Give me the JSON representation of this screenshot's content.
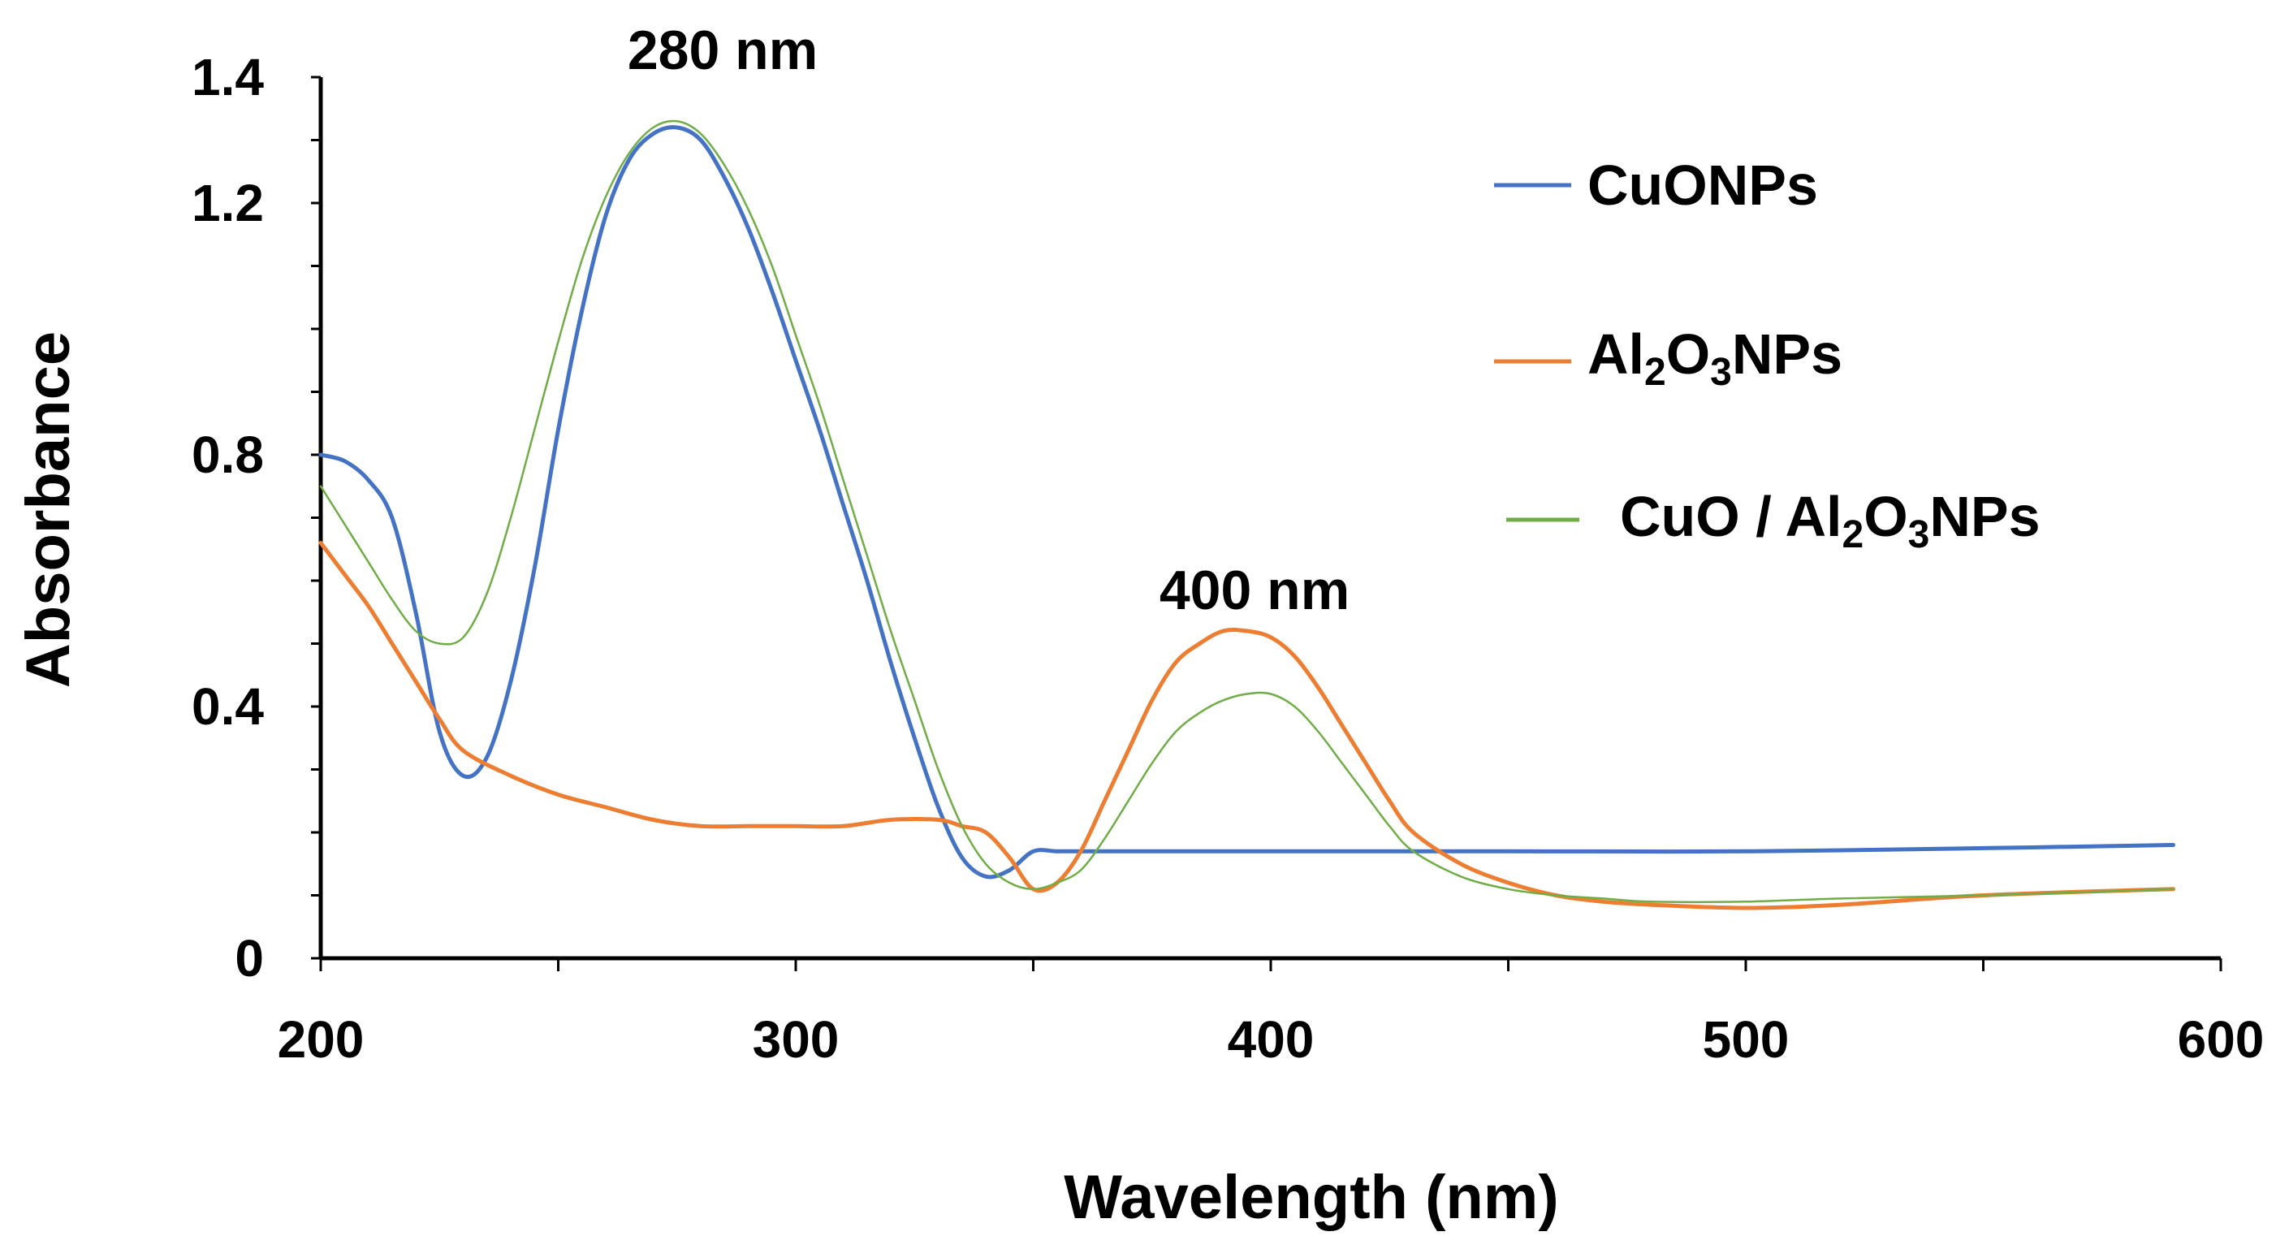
{
  "chart_data": {
    "type": "line",
    "title": "",
    "xlabel": "Wavelength (nm)",
    "ylabel": "Absorbance",
    "xlim": [
      200,
      600
    ],
    "ylim": [
      0,
      1.4
    ],
    "x_ticks": [
      200,
      300,
      400,
      500,
      600
    ],
    "y_ticks": [
      0,
      0.4,
      0.8,
      1.2,
      1.4
    ],
    "y_tick_labels": [
      "0",
      "0.4",
      "0.8",
      "1.2",
      "1.4"
    ],
    "grid": false,
    "legend_position": "top-right",
    "annotations": [
      {
        "text": "280 nm",
        "x": 275,
        "y": 1.31
      },
      {
        "text": "400 nm",
        "x": 398,
        "y": 0.51
      }
    ],
    "series": [
      {
        "name": "CuONPs",
        "legend_main": "CuONPs",
        "color": "#4472C4",
        "x": [
          200,
          205,
          210,
          215,
          220,
          225,
          230,
          235,
          240,
          245,
          250,
          255,
          260,
          265,
          270,
          275,
          280,
          285,
          290,
          295,
          300,
          305,
          310,
          315,
          320,
          325,
          330,
          335,
          340,
          345,
          350,
          355,
          360,
          380,
          400,
          450,
          500,
          550,
          590
        ],
        "values": [
          0.8,
          0.79,
          0.76,
          0.7,
          0.55,
          0.36,
          0.29,
          0.32,
          0.44,
          0.62,
          0.84,
          1.03,
          1.18,
          1.27,
          1.31,
          1.32,
          1.3,
          1.24,
          1.16,
          1.06,
          0.95,
          0.84,
          0.72,
          0.6,
          0.47,
          0.35,
          0.24,
          0.16,
          0.13,
          0.14,
          0.17,
          0.17,
          0.17,
          0.17,
          0.17,
          0.17,
          0.17,
          0.175,
          0.18
        ]
      },
      {
        "name": "Al2O3NPs",
        "legend_main": "Al",
        "legend_sub1": "2",
        "legend_mid": "O",
        "legend_sub2": "3",
        "legend_tail": "NPs",
        "color": "#ED7D31",
        "x": [
          200,
          205,
          210,
          215,
          220,
          225,
          230,
          240,
          250,
          260,
          270,
          280,
          290,
          300,
          310,
          320,
          330,
          335,
          340,
          345,
          350,
          355,
          360,
          365,
          370,
          375,
          380,
          385,
          390,
          395,
          400,
          405,
          410,
          415,
          420,
          425,
          430,
          440,
          450,
          460,
          470,
          480,
          500,
          520,
          550,
          590
        ],
        "values": [
          0.66,
          0.61,
          0.56,
          0.5,
          0.44,
          0.38,
          0.33,
          0.29,
          0.26,
          0.24,
          0.22,
          0.21,
          0.21,
          0.21,
          0.21,
          0.22,
          0.22,
          0.21,
          0.2,
          0.16,
          0.11,
          0.12,
          0.17,
          0.25,
          0.33,
          0.41,
          0.47,
          0.5,
          0.52,
          0.52,
          0.51,
          0.48,
          0.43,
          0.37,
          0.31,
          0.25,
          0.2,
          0.15,
          0.12,
          0.1,
          0.09,
          0.085,
          0.08,
          0.085,
          0.1,
          0.11
        ]
      },
      {
        "name": "CuO / Al2O3NPs",
        "legend_main": "CuO / Al",
        "legend_sub1": "2",
        "legend_mid": "O",
        "legend_sub2": "3",
        "legend_tail": "NPs",
        "color": "#70AD47",
        "x": [
          200,
          205,
          210,
          215,
          220,
          225,
          230,
          235,
          240,
          245,
          250,
          255,
          260,
          265,
          270,
          275,
          280,
          285,
          290,
          295,
          300,
          305,
          310,
          315,
          320,
          325,
          330,
          335,
          340,
          345,
          350,
          355,
          360,
          365,
          370,
          375,
          380,
          385,
          390,
          395,
          400,
          405,
          410,
          415,
          420,
          425,
          430,
          440,
          450,
          460,
          470,
          480,
          500,
          520,
          550,
          590
        ],
        "values": [
          0.75,
          0.69,
          0.63,
          0.57,
          0.52,
          0.5,
          0.51,
          0.58,
          0.7,
          0.84,
          0.98,
          1.11,
          1.21,
          1.28,
          1.32,
          1.33,
          1.31,
          1.26,
          1.19,
          1.1,
          0.99,
          0.88,
          0.76,
          0.64,
          0.52,
          0.41,
          0.3,
          0.21,
          0.15,
          0.12,
          0.11,
          0.12,
          0.14,
          0.19,
          0.25,
          0.31,
          0.36,
          0.39,
          0.41,
          0.42,
          0.42,
          0.4,
          0.36,
          0.31,
          0.26,
          0.21,
          0.17,
          0.13,
          0.11,
          0.1,
          0.095,
          0.09,
          0.09,
          0.095,
          0.1,
          0.11
        ]
      }
    ]
  }
}
